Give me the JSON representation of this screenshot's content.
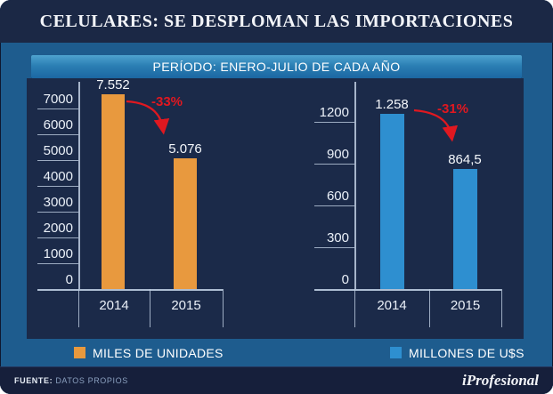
{
  "title": "CELULARES: SE DESPLOMAN LAS IMPORTACIONES",
  "period_banner": "PERÍODO: ENERO-JULIO DE CADA AÑO",
  "colors": {
    "background_blue": "#1E5C8E",
    "panel_navy": "#1B2A49",
    "title_navy": "#1B2845",
    "footer_navy": "#161F3B",
    "orange_bar": "#E8993E",
    "blue_bar": "#2E8FD0",
    "change_red": "#E01820",
    "axis_line": "#BECDE1",
    "text_white": "#F2F4F8"
  },
  "chart_data": [
    {
      "type": "bar",
      "title": "MILES DE UNIDADES",
      "categories": [
        "2014",
        "2015"
      ],
      "values": [
        7552,
        5076
      ],
      "value_labels": [
        "7.552",
        "5.076"
      ],
      "change_label": "-33%",
      "bar_color": "#E8993E",
      "xlabel": "",
      "ylabel": "",
      "yticks": [
        0,
        1000,
        2000,
        3000,
        4000,
        5000,
        6000,
        7000
      ],
      "ytick_labels": [
        "0",
        "1000",
        "2000",
        "3000",
        "4000",
        "5000",
        "6000",
        "7000"
      ],
      "ylim": [
        0,
        7600
      ],
      "grid": false,
      "legend_position": "bottom"
    },
    {
      "type": "bar",
      "title": "MILLONES DE U$S",
      "categories": [
        "2014",
        "2015"
      ],
      "values": [
        1258,
        864.5
      ],
      "value_labels": [
        "1.258",
        "864,5"
      ],
      "change_label": "-31%",
      "bar_color": "#2E8FD0",
      "xlabel": "",
      "ylabel": "",
      "yticks": [
        0,
        300,
        600,
        900,
        1200
      ],
      "ytick_labels": [
        "0",
        "300",
        "600",
        "900",
        "1200"
      ],
      "ylim": [
        0,
        1350
      ],
      "grid": false,
      "legend_position": "bottom"
    }
  ],
  "legend": [
    {
      "label": "MILES DE UNIDADES",
      "color": "#E8993E"
    },
    {
      "label": "MILLONES DE U$S",
      "color": "#2E8FD0"
    }
  ],
  "footer": {
    "source_label": "FUENTE:",
    "source_value": "DATOS PROPIOS",
    "brand": "iProfesional"
  }
}
